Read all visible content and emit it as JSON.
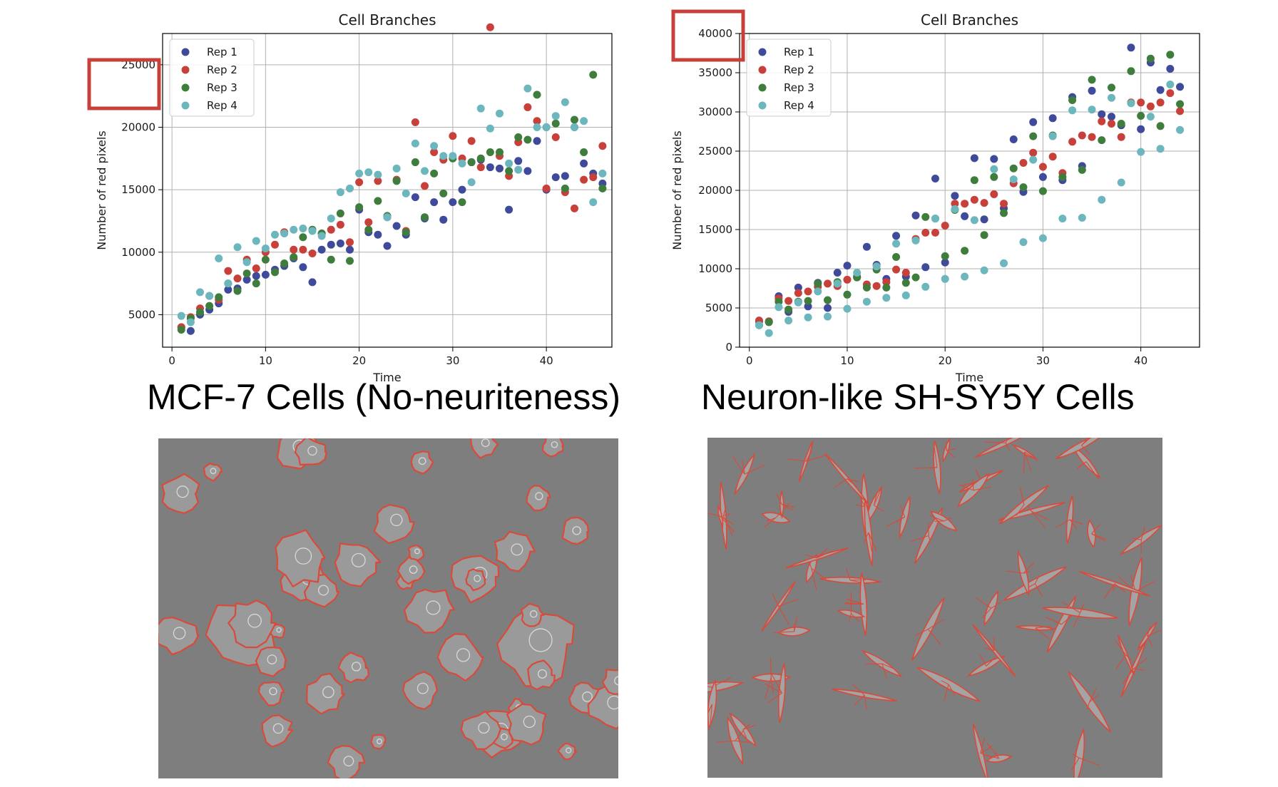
{
  "charts": [
    {
      "title": "Cell Branches",
      "xlabel": "Time",
      "ylabel": "Number of red pixels",
      "xticks": [
        0,
        10,
        20,
        30,
        40
      ],
      "yticks": [
        5000,
        10000,
        15000,
        20000,
        25000
      ],
      "caption": "MCF-7 Cells (No-neuriteness)"
    },
    {
      "title": "Cell Branches",
      "xlabel": "Time",
      "ylabel": "Number of red pixels",
      "xticks": [
        0,
        10,
        20,
        30,
        40
      ],
      "yticks": [
        0,
        5000,
        10000,
        15000,
        20000,
        25000,
        30000,
        35000,
        40000
      ],
      "caption": "Neuron-like SH-SY5Y Cells"
    }
  ],
  "colors": {
    "rep1": "#3f4a9a",
    "rep2": "#c8403a",
    "rep3": "#3f7d3c",
    "rep4": "#6cb6bd",
    "highlight_box": "#c8403a",
    "outline": "#d94a3a",
    "micrograph_bg": "#7e7e7e"
  },
  "chart_data": [
    {
      "type": "scatter",
      "title": "Cell Branches",
      "xlabel": "Time",
      "ylabel": "Number of red pixels",
      "xlim": [
        -1,
        47
      ],
      "ylim": [
        2400,
        27500
      ],
      "grid": true,
      "legend": "top-left",
      "annotation": "red box highlighting the 25000 y-tick label",
      "x": [
        1,
        2,
        3,
        4,
        5,
        6,
        7,
        8,
        9,
        10,
        11,
        12,
        13,
        14,
        15,
        16,
        17,
        18,
        19,
        20,
        21,
        22,
        23,
        24,
        25,
        26,
        27,
        28,
        29,
        30,
        31,
        32,
        33,
        34,
        35,
        36,
        37,
        38,
        39,
        40,
        41,
        42,
        43,
        44,
        45,
        46
      ],
      "series": [
        {
          "name": "Rep 1",
          "values": [
            4000,
            3700,
            5000,
            5400,
            5900,
            7000,
            7100,
            7800,
            8100,
            8200,
            8600,
            8900,
            9500,
            8800,
            7600,
            10200,
            10600,
            10700,
            10200,
            13400,
            11600,
            11400,
            10500,
            12100,
            11400,
            14400,
            12700,
            14000,
            12600,
            14000,
            15000,
            17200,
            17400,
            16800,
            16700,
            13400,
            17300,
            16500,
            18900,
            15000,
            16000,
            16100,
            20000,
            17100,
            16300,
            15500
          ]
        },
        {
          "name": "Rep 2",
          "values": [
            4000,
            4800,
            5500,
            6500,
            6200,
            8500,
            7900,
            9400,
            8700,
            10000,
            10600,
            11600,
            10200,
            10200,
            9900,
            11500,
            11800,
            12200,
            10800,
            15600,
            12400,
            15700,
            12800,
            15800,
            11700,
            20400,
            15300,
            18000,
            17400,
            19300,
            17500,
            18900,
            16800,
            28000,
            17700,
            16100,
            18800,
            21600,
            20500,
            15100,
            19200,
            14800,
            13500,
            15800,
            16000,
            18500
          ]
        },
        {
          "name": "Rep 3",
          "values": [
            3800,
            4700,
            5200,
            5700,
            6400,
            7500,
            6900,
            8300,
            7500,
            9400,
            8400,
            9100,
            9600,
            11200,
            11800,
            11500,
            9400,
            13100,
            9300,
            13600,
            11800,
            14100,
            12900,
            15700,
            11600,
            17200,
            12800,
            16300,
            14700,
            17500,
            14000,
            17200,
            17500,
            18000,
            18000,
            16500,
            19200,
            19000,
            22600,
            20000,
            20300,
            15100,
            20600,
            18000,
            24200,
            15100
          ]
        },
        {
          "name": "Rep 4",
          "values": [
            4900,
            4400,
            6800,
            6500,
            9500,
            7500,
            10400,
            9200,
            10900,
            10300,
            11400,
            11500,
            11800,
            11900,
            11700,
            11300,
            12700,
            14800,
            15100,
            16300,
            16400,
            16200,
            12800,
            16700,
            14700,
            18700,
            16500,
            18500,
            17700,
            17700,
            17100,
            15600,
            21500,
            19900,
            21100,
            17100,
            16600,
            23100,
            20000,
            20000,
            20900,
            22000,
            20000,
            20500,
            14000,
            16300
          ]
        }
      ]
    },
    {
      "type": "scatter",
      "title": "Cell Branches",
      "xlabel": "Time",
      "ylabel": "Number of red pixels",
      "xlim": [
        -1,
        46
      ],
      "ylim": [
        0,
        40000
      ],
      "grid": true,
      "legend": "top-left",
      "annotation": "red box highlighting the 40000 y-tick label",
      "x": [
        1,
        2,
        3,
        4,
        5,
        6,
        7,
        8,
        9,
        10,
        11,
        12,
        13,
        14,
        15,
        16,
        17,
        18,
        19,
        20,
        21,
        22,
        23,
        24,
        25,
        26,
        27,
        28,
        29,
        30,
        31,
        32,
        33,
        34,
        35,
        36,
        37,
        38,
        39,
        40,
        41,
        42,
        43,
        44
      ],
      "series": [
        {
          "name": "Rep 1",
          "values": [
            3300,
            3200,
            6500,
            4500,
            7600,
            5200,
            8200,
            5000,
            9500,
            10400,
            9000,
            12800,
            10500,
            8700,
            14200,
            9000,
            16800,
            10200,
            21500,
            10800,
            19300,
            16700,
            24100,
            16300,
            24000,
            17700,
            26500,
            19800,
            28700,
            21700,
            29200,
            21300,
            31900,
            23100,
            32700,
            29700,
            29400,
            28300,
            38200,
            27800,
            36300,
            32800,
            35500,
            33200
          ]
        },
        {
          "name": "Rep 2",
          "values": [
            3400,
            3300,
            6200,
            5900,
            6900,
            7100,
            7700,
            8100,
            7800,
            8600,
            8900,
            8000,
            7800,
            8300,
            9900,
            9500,
            13800,
            14600,
            14600,
            15500,
            18300,
            18300,
            18800,
            18400,
            19500,
            18300,
            20900,
            23500,
            24800,
            23000,
            24300,
            22200,
            26200,
            27000,
            26800,
            28800,
            28500,
            26800,
            31200,
            31200,
            30700,
            31200,
            32400,
            30100
          ]
        },
        {
          "name": "Rep 3",
          "values": [
            2800,
            3200,
            5800,
            4800,
            5800,
            5900,
            8100,
            6000,
            8300,
            6700,
            8900,
            7600,
            9900,
            7600,
            11500,
            8200,
            8900,
            16600,
            16400,
            11600,
            17500,
            12300,
            21300,
            14300,
            21700,
            17100,
            22800,
            20400,
            26900,
            19900,
            27000,
            21700,
            31500,
            22600,
            34100,
            26400,
            33100,
            28500,
            35200,
            29500,
            36800,
            28200,
            37300,
            31000
          ]
        },
        {
          "name": "Rep 4",
          "values": [
            2800,
            1800,
            5100,
            3400,
            5700,
            3800,
            7100,
            3900,
            8100,
            4900,
            9500,
            5800,
            10300,
            6300,
            13200,
            6600,
            13600,
            7700,
            16400,
            8700,
            17600,
            9000,
            16200,
            9800,
            22700,
            10700,
            21400,
            13400,
            23900,
            13900,
            26900,
            16400,
            30200,
            16500,
            30300,
            18800,
            31800,
            21000,
            31100,
            24900,
            29400,
            25300,
            33500,
            27700
          ]
        }
      ]
    }
  ]
}
